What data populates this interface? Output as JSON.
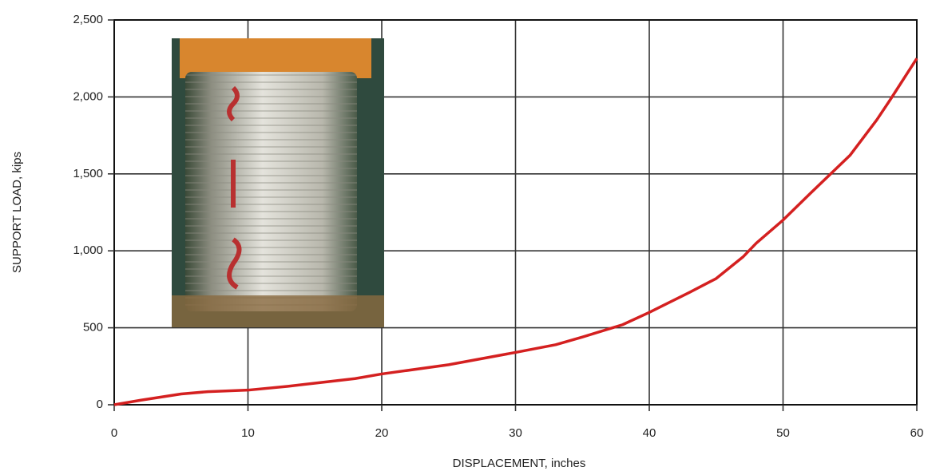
{
  "chart_data": {
    "type": "line",
    "xlabel": "DISPLACEMENT, inches",
    "ylabel": "SUPPORT LOAD, kips",
    "series": [
      {
        "color": "#d42020",
        "x": [
          0,
          2,
          5,
          7,
          10,
          13,
          15,
          18,
          20,
          25,
          30,
          33,
          35,
          38,
          40,
          43,
          45,
          47,
          48,
          50,
          52,
          55,
          57,
          58,
          60
        ],
        "values": [
          0,
          30,
          70,
          85,
          95,
          120,
          140,
          170,
          200,
          260,
          340,
          390,
          440,
          520,
          600,
          730,
          820,
          960,
          1050,
          1200,
          1370,
          1620,
          1850,
          1980,
          2250
        ]
      }
    ],
    "xlim": [
      0,
      60
    ],
    "xticks": [
      0,
      10,
      20,
      30,
      40,
      50,
      60
    ],
    "ylim": [
      0,
      2500
    ],
    "yticks": [
      0,
      500,
      {
        "value": 1000,
        "label": "1,000"
      },
      {
        "value": 1500,
        "label": "1,500"
      },
      {
        "value": 2000,
        "label": "2,000"
      },
      {
        "value": 2500,
        "label": "2,500"
      }
    ],
    "grid": true
  }
}
